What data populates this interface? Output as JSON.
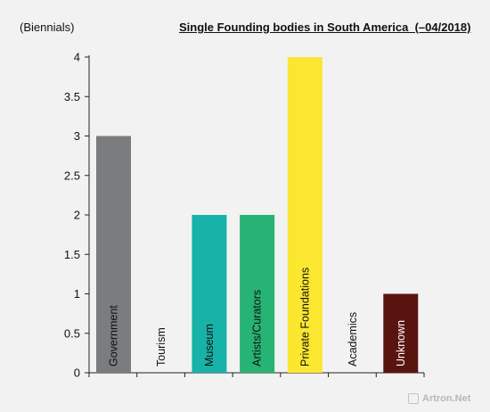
{
  "chart_data": {
    "type": "bar",
    "title": "Single Founding bodies in South America  (–04/2018)",
    "ylabel": "(Biennials)",
    "xlabel": "",
    "categories": [
      "Government",
      "Tourism",
      "Museum",
      "Artists/Curators",
      "Private Foundations",
      "Academics",
      "Unknown"
    ],
    "values": [
      3,
      0,
      2,
      2,
      4,
      0,
      1
    ],
    "colors": [
      "#7b7c7e",
      "#7b7c7e",
      "#17b3a9",
      "#27b373",
      "#fbe630",
      "#7b7c7e",
      "#5a1410"
    ],
    "label_colors": [
      "#111111",
      "#111111",
      "#111111",
      "#111111",
      "#111111",
      "#111111",
      "#ffffff"
    ],
    "ylim": [
      0,
      4
    ],
    "yticks": [
      "0",
      "0.5",
      "1",
      "1.5",
      "2",
      "2.5",
      "3",
      "3.5",
      "4"
    ],
    "grid": false,
    "legend": "none"
  },
  "watermark": "Artron.Net"
}
